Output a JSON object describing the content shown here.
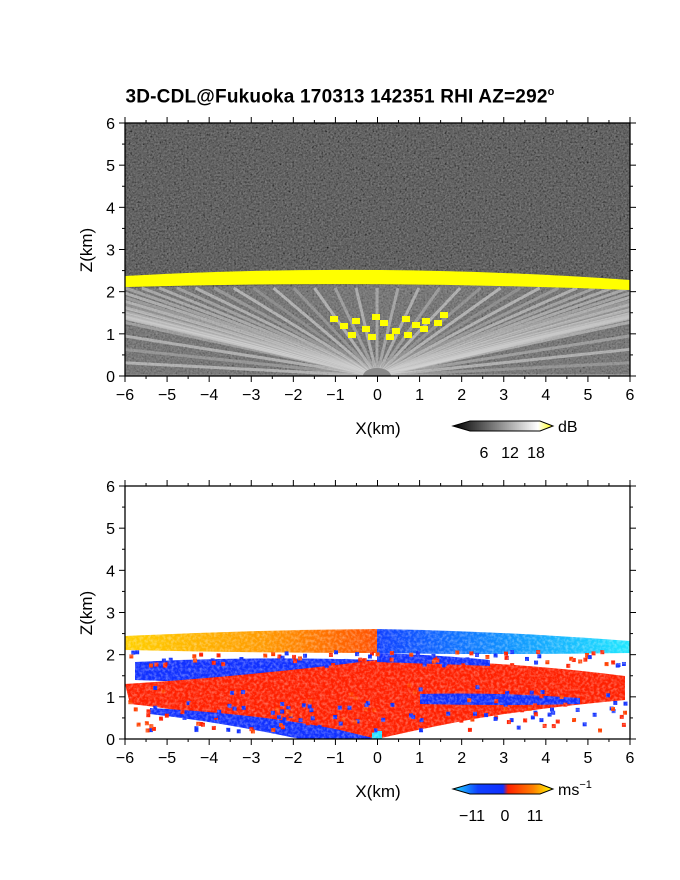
{
  "title": "3D-CDL@Fukuoka 170313 142351 RHI AZ=292",
  "title_degree_mark": "o",
  "chart_data": [
    {
      "type": "heatmap",
      "name": "snr-panel",
      "xlabel": "X(km)",
      "ylabel": "Z(km)",
      "xlim": [
        -6,
        6
      ],
      "ylim": [
        0,
        6
      ],
      "xticks": [
        "-6",
        "-5",
        "-4",
        "-3",
        "-2",
        "-1",
        "0",
        "1",
        "2",
        "3",
        "4",
        "5",
        "6"
      ],
      "yticks": [
        "0",
        "1",
        "2",
        "3",
        "4",
        "5",
        "6"
      ],
      "colorbar": {
        "unit": "dB",
        "ticks": [
          "6",
          "12",
          "18"
        ],
        "colormap": "grayscale-to-yellow"
      },
      "features": {
        "layer_top_km": 2.3,
        "bright_layer_color": "#ffff00",
        "fan_center_x_km": 0
      }
    },
    {
      "type": "heatmap",
      "name": "velocity-panel",
      "xlabel": "X(km)",
      "ylabel": "Z(km)",
      "xlim": [
        -6,
        6
      ],
      "ylim": [
        0,
        6
      ],
      "xticks": [
        "-6",
        "-5",
        "-4",
        "-3",
        "-2",
        "-1",
        "0",
        "1",
        "2",
        "3",
        "4",
        "5",
        "6"
      ],
      "yticks": [
        "0",
        "1",
        "2",
        "3",
        "4",
        "5",
        "6"
      ],
      "colorbar": {
        "unit": "ms",
        "unit_exponent": "−1",
        "ticks": [
          "−11",
          "0",
          "11"
        ],
        "colormap": "cyan-blue-red-yellow"
      },
      "features": {
        "top_layer_km": 2.3
      }
    }
  ],
  "colors": {
    "yellow": "#ffff00",
    "blue": "#1030ff",
    "red": "#ff2000",
    "orange": "#ff9000",
    "cyan": "#20e0ff"
  }
}
